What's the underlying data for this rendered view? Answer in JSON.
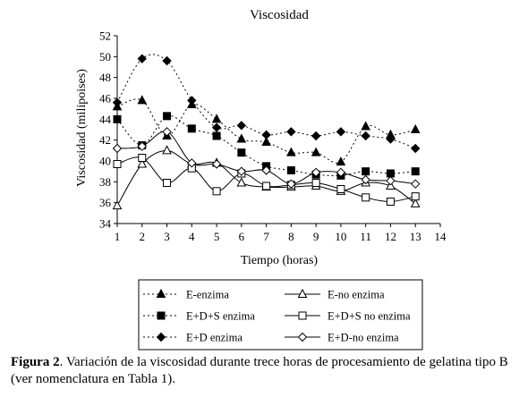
{
  "chart_data": {
    "type": "line",
    "title": "Viscosidad",
    "xlabel": "Tiempo (horas)",
    "ylabel": "Viscosidad (milipoises)",
    "xlim": [
      1,
      14
    ],
    "ylim": [
      34,
      52
    ],
    "x_ticks": [
      "1",
      "2",
      "3",
      "4",
      "5",
      "6",
      "7",
      "8",
      "9",
      "10",
      "11",
      "12",
      "13",
      "14"
    ],
    "y_ticks": [
      "34",
      "36",
      "38",
      "40",
      "42",
      "44",
      "46",
      "48",
      "50",
      "52"
    ],
    "grid": false,
    "legend_position": "bottom",
    "x": [
      1,
      2,
      3,
      4,
      5,
      6,
      7,
      8,
      9,
      10,
      11,
      12,
      13
    ],
    "series": [
      {
        "name": "E-enzima",
        "values": [
          45.2,
          45.8,
          42.4,
          45.4,
          44.0,
          42.1,
          41.8,
          40.8,
          40.8,
          39.9,
          43.3,
          42.5,
          43.0
        ],
        "marker": "triangle-filled",
        "dashed": true
      },
      {
        "name": "E-no enzima",
        "values": [
          35.7,
          39.7,
          41.0,
          39.7,
          39.8,
          37.9,
          37.5,
          37.5,
          37.6,
          37.1,
          37.9,
          37.6,
          35.9
        ],
        "marker": "triangle-open",
        "dashed": false
      },
      {
        "name": "E+D+S enzima",
        "values": [
          44.0,
          41.5,
          44.3,
          43.1,
          42.4,
          40.8,
          39.5,
          39.1,
          38.7,
          38.6,
          39.0,
          38.8,
          39.0
        ],
        "marker": "square-filled",
        "dashed": true
      },
      {
        "name": "E+D+S no enzima",
        "values": [
          39.7,
          40.3,
          37.9,
          39.3,
          37.1,
          38.8,
          37.6,
          37.7,
          37.9,
          37.3,
          36.5,
          36.1,
          36.6
        ],
        "marker": "square-open",
        "dashed": false
      },
      {
        "name": "E+D enzima",
        "values": [
          45.6,
          49.8,
          49.6,
          45.8,
          43.2,
          43.4,
          42.5,
          42.8,
          42.4,
          42.8,
          42.4,
          42.1,
          41.2
        ],
        "marker": "diamond-filled",
        "dashed": true
      },
      {
        "name": "E+D-no enzima",
        "values": [
          41.2,
          41.4,
          42.8,
          39.8,
          39.7,
          39.0,
          39.1,
          37.8,
          38.9,
          38.9,
          38.2,
          38.1,
          37.8
        ],
        "marker": "diamond-open",
        "dashed": false
      }
    ]
  },
  "caption": {
    "label": "Figura 2",
    "text": ". Variación de la viscosidad durante trece horas de procesamiento de gelatina tipo B (ver nomenclatura en Tabla 1)."
  }
}
